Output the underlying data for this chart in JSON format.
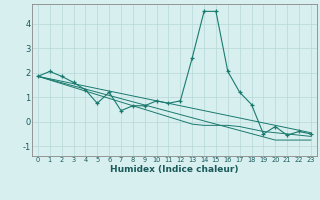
{
  "x": [
    0,
    1,
    2,
    3,
    4,
    5,
    6,
    7,
    8,
    9,
    10,
    11,
    12,
    13,
    14,
    15,
    16,
    17,
    18,
    19,
    20,
    21,
    22,
    23
  ],
  "y_main": [
    1.85,
    2.05,
    1.85,
    1.6,
    1.3,
    0.75,
    1.2,
    0.45,
    0.65,
    0.65,
    0.85,
    0.75,
    0.85,
    2.6,
    4.5,
    4.5,
    2.05,
    1.2,
    0.7,
    -0.5,
    -0.2,
    -0.55,
    -0.4,
    -0.5
  ],
  "y_trend1": [
    1.85,
    1.75,
    1.65,
    1.55,
    1.45,
    1.35,
    1.25,
    1.15,
    1.05,
    0.95,
    0.85,
    0.75,
    0.65,
    0.55,
    0.45,
    0.35,
    0.25,
    0.15,
    0.05,
    -0.05,
    -0.15,
    -0.25,
    -0.35,
    -0.45
  ],
  "y_trend2": [
    1.85,
    1.72,
    1.59,
    1.46,
    1.33,
    1.2,
    1.07,
    0.94,
    0.81,
    0.68,
    0.55,
    0.42,
    0.29,
    0.16,
    0.03,
    -0.1,
    -0.23,
    -0.36,
    -0.49,
    -0.62,
    -0.75,
    -0.75,
    -0.75,
    -0.75
  ],
  "y_trend3": [
    1.85,
    1.7,
    1.55,
    1.4,
    1.25,
    1.1,
    0.95,
    0.8,
    0.65,
    0.5,
    0.35,
    0.2,
    0.05,
    -0.1,
    -0.15,
    -0.15,
    -0.15,
    -0.2,
    -0.3,
    -0.4,
    -0.45,
    -0.5,
    -0.55,
    -0.6
  ],
  "color": "#1a7a6e",
  "bg_color": "#d8eff0",
  "grid_color": "#b8d8d8",
  "xlabel": "Humidex (Indice chaleur)",
  "ylim": [
    -1.4,
    4.8
  ],
  "xlim": [
    -0.5,
    23.5
  ],
  "yticks": [
    -1,
    0,
    1,
    2,
    3,
    4
  ],
  "xticks": [
    0,
    1,
    2,
    3,
    4,
    5,
    6,
    7,
    8,
    9,
    10,
    11,
    12,
    13,
    14,
    15,
    16,
    17,
    18,
    19,
    20,
    21,
    22,
    23
  ],
  "xtick_fontsize": 4.8,
  "ytick_fontsize": 6.0,
  "xlabel_fontsize": 6.5
}
